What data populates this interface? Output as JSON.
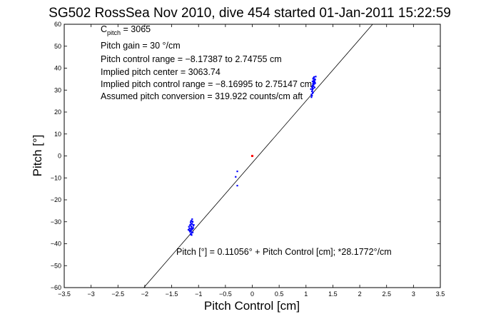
{
  "chart_data": {
    "type": "scatter",
    "title": "SG502 RossSea Nov 2010, dive 454 started 01-Jan-2011 15:22:59",
    "xlabel": "Pitch Control [cm]",
    "ylabel": "Pitch [°]",
    "xlim": [
      -3.5,
      3.5
    ],
    "ylim": [
      -60,
      60
    ],
    "xticks": [
      -3.5,
      -3,
      -2.5,
      -2,
      -1.5,
      -1,
      -0.5,
      0,
      0.5,
      1,
      1.5,
      2,
      2.5,
      3,
      3.5
    ],
    "yticks": [
      -60,
      -50,
      -40,
      -30,
      -20,
      -10,
      0,
      10,
      20,
      30,
      40,
      50,
      60
    ],
    "grid": false,
    "colors": {
      "points": "#0000ff",
      "center_marker": "#ff0000",
      "fit_line": "#000000"
    },
    "fit_line": {
      "slope": 28.1772,
      "x_intercept": 0.11056
    },
    "annotations": {
      "pitch_label": "C",
      "pitch_subscript": "pitch",
      "pitch_value": " = 3065",
      "line2": "Pitch gain = 30 °/cm",
      "line3": "Pitch control range = −8.17387 to 2.74755 cm",
      "line4": "Implied pitch center = 3063.74",
      "line5": "Implied pitch control range = −8.16995 to 2.75147 cm",
      "line6": "Assumed pitch conversion = 319.922 counts/cm aft",
      "fit_equation": "Pitch [°] = 0.11056° + Pitch Control [cm]; *28.1772°/cm"
    },
    "center_marker": {
      "x": 0,
      "y": 0
    },
    "series": [
      {
        "points": [
          [
            -1.15,
            -35.5
          ],
          [
            -1.14,
            -34.2
          ],
          [
            -1.16,
            -33.8
          ],
          [
            -1.13,
            -32.5
          ],
          [
            -1.12,
            -31.0
          ],
          [
            -1.15,
            -30.2
          ],
          [
            -1.17,
            -33.0
          ],
          [
            -1.11,
            -34.8
          ],
          [
            -1.14,
            -32.0
          ],
          [
            -1.13,
            -30.8
          ],
          [
            -1.16,
            -31.5
          ],
          [
            -1.12,
            -33.5
          ],
          [
            -1.1,
            -31.8
          ],
          [
            -1.15,
            -34.0
          ],
          [
            -1.14,
            -29.5
          ],
          [
            -1.13,
            -35.0
          ],
          [
            -1.18,
            -32.2
          ],
          [
            -1.11,
            -30.0
          ],
          [
            -1.12,
            -28.8
          ],
          [
            -1.16,
            -34.5
          ],
          [
            -1.14,
            -33.2
          ],
          [
            -1.1,
            -32.8
          ],
          [
            -1.13,
            -36.0
          ],
          [
            -1.15,
            -31.2
          ],
          [
            -1.17,
            -34.0
          ],
          [
            -1.12,
            -29.8
          ],
          [
            -1.19,
            -33.6
          ],
          [
            -1.09,
            -31.4
          ],
          [
            -1.14,
            -35.8
          ],
          [
            -1.11,
            -33.0
          ],
          [
            -0.28,
            -7.0
          ],
          [
            -0.28,
            -13.5
          ],
          [
            -0.31,
            -9.5
          ],
          [
            1.1,
            28.0
          ],
          [
            1.11,
            29.5
          ],
          [
            1.12,
            31.0
          ],
          [
            1.13,
            32.5
          ],
          [
            1.14,
            33.5
          ],
          [
            1.15,
            34.5
          ],
          [
            1.16,
            35.0
          ],
          [
            1.12,
            30.2
          ],
          [
            1.13,
            33.0
          ],
          [
            1.14,
            31.8
          ],
          [
            1.15,
            36.0
          ],
          [
            1.11,
            27.5
          ],
          [
            1.12,
            32.0
          ],
          [
            1.16,
            33.8
          ],
          [
            1.17,
            34.8
          ],
          [
            1.13,
            30.8
          ],
          [
            1.14,
            35.6
          ],
          [
            1.1,
            26.8
          ],
          [
            1.15,
            32.8
          ],
          [
            1.12,
            34.0
          ],
          [
            1.13,
            29.0
          ],
          [
            1.18,
            36.2
          ],
          [
            1.11,
            31.5
          ],
          [
            1.14,
            34.2
          ],
          [
            1.16,
            31.2
          ],
          [
            1.12,
            28.6
          ],
          [
            1.09,
            30.5
          ],
          [
            1.17,
            33.2
          ],
          [
            1.13,
            35.2
          ]
        ]
      }
    ]
  }
}
